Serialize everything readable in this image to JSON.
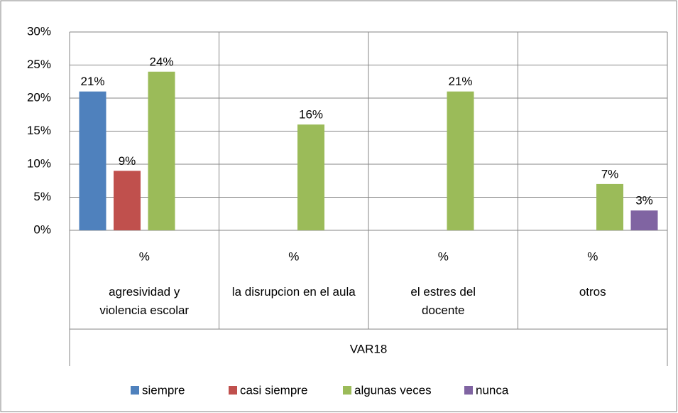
{
  "chart_data": {
    "type": "bar",
    "categories": [
      "%",
      "%",
      "%",
      "%"
    ],
    "groups": [
      "agresividad y violencia escolar",
      "la disrupcion en el aula",
      "el estres del docente",
      "otros"
    ],
    "axis_group": "VAR18",
    "series": [
      {
        "name": "siempre",
        "color": "#4f81bd",
        "values": [
          21,
          null,
          null,
          null
        ],
        "value_labels": [
          "21%",
          null,
          null,
          null
        ]
      },
      {
        "name": "casi siempre",
        "color": "#c0504d",
        "values": [
          9,
          null,
          null,
          null
        ],
        "value_labels": [
          "9%",
          null,
          null,
          null
        ]
      },
      {
        "name": "algunas veces",
        "color": "#9bbb59",
        "values": [
          24,
          16,
          21,
          7
        ],
        "value_labels": [
          "24%",
          "16%",
          "21%",
          "7%"
        ]
      },
      {
        "name": "nunca",
        "color": "#8064a2",
        "values": [
          null,
          null,
          null,
          3
        ],
        "value_labels": [
          null,
          null,
          null,
          "3%"
        ]
      }
    ],
    "ylim": [
      0,
      30
    ],
    "yticks": [
      {
        "value": 0,
        "label": "0%"
      },
      {
        "value": 5,
        "label": "5%"
      },
      {
        "value": 10,
        "label": "10%"
      },
      {
        "value": 15,
        "label": "15%"
      },
      {
        "value": 20,
        "label": "20%"
      },
      {
        "value": 25,
        "label": "25%"
      },
      {
        "value": 30,
        "label": "30%"
      }
    ],
    "grid": true,
    "legend": "bottom"
  }
}
